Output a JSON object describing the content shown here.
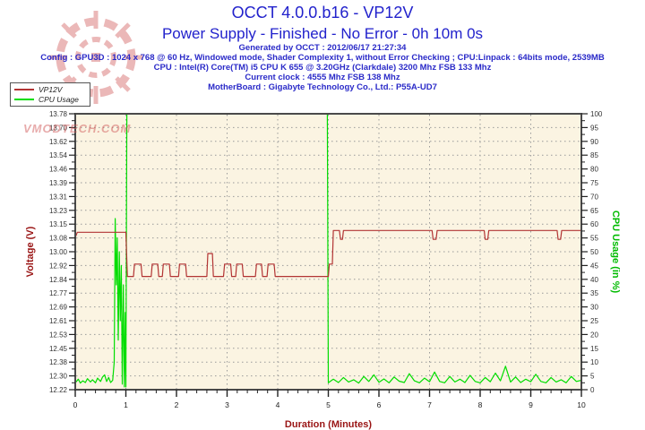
{
  "title": {
    "line1": "OCCT 4.0.0.b16 - VP12V",
    "line2": "Power Supply - Finished - No Error - 0h 10m 0s"
  },
  "info_lines": [
    "Generated by OCCT : 2012/06/17 21:27:34",
    "Config : GPU3D : 1024 x 768 @ 60 Hz, Windowed mode, Shader Complexity 1, without Error Checking ; CPU:Linpack : 64bits mode, 2539MB",
    "CPU : Intel(R) Core(TM) i5 CPU K 655 @ 3.20GHz (Clarkdale) 3200 Mhz FSB 133 Mhz",
    "Current clock : 4555 Mhz FSB 138 Mhz",
    "MotherBoard : Gigabyte Technology Co., Ltd.: P55A-UD7"
  ],
  "legend": {
    "items": [
      {
        "label": "VP12V",
        "color": "#b23434"
      },
      {
        "label": "CPU Usage",
        "color": "#00dd00"
      }
    ]
  },
  "watermark": {
    "text": "VMODTECH.COM"
  },
  "colors": {
    "title_blue": "#2222cc",
    "info_blue": "#2a2ac8",
    "axis_red": "#991414",
    "axis_green": "#00bb00",
    "series_red": "#b23434",
    "series_green": "#00dd00",
    "plot_bg": "#fbf4e2",
    "grid": "#9a9a9a",
    "frame": "#4a4a4a",
    "watermark_red": "#d05858"
  },
  "chart_data": {
    "type": "line",
    "title": "OCCT 4.0.0.b16 - VP12V",
    "plot_bg": "#fbf4e2",
    "grid_color": "#9a9a9a",
    "frame_color": "#4a4a4a",
    "grid": "dotted",
    "legend_position": "top-left",
    "x_axis": {
      "label": "Duration (Minutes)",
      "range": [
        0,
        10
      ],
      "tick_labels": [
        "0",
        "1",
        "2",
        "3",
        "4",
        "5",
        "6",
        "7",
        "8",
        "9",
        "10"
      ],
      "minor_tick_step": 0.2
    },
    "y_left": {
      "label": "Voltage (V)",
      "range": [
        12.22,
        13.78
      ],
      "tick_labels": [
        "13.78",
        "13.70",
        "13.62",
        "13.54",
        "13.46",
        "13.39",
        "13.31",
        "13.23",
        "13.15",
        "13.08",
        "13.00",
        "12.92",
        "12.84",
        "12.77",
        "12.69",
        "12.61",
        "12.53",
        "12.45",
        "12.38",
        "12.30",
        "12.22"
      ]
    },
    "y_right": {
      "label": "CPU Usage (in %)",
      "range": [
        0,
        100
      ],
      "tick_labels": [
        "100",
        "95",
        "90",
        "85",
        "80",
        "75",
        "70",
        "65",
        "60",
        "55",
        "50",
        "45",
        "40",
        "35",
        "30",
        "25",
        "20",
        "15",
        "10",
        "5",
        "0"
      ]
    },
    "series": [
      {
        "name": "VP12V",
        "axis": "left",
        "color": "#b23434",
        "points": [
          [
            0,
            13.08
          ],
          [
            0.04,
            13.11
          ],
          [
            1.0,
            13.11
          ],
          [
            1.03,
            12.86
          ],
          [
            1.15,
            12.86
          ],
          [
            1.17,
            12.93
          ],
          [
            1.3,
            12.93
          ],
          [
            1.32,
            12.86
          ],
          [
            1.5,
            12.86
          ],
          [
            1.52,
            12.93
          ],
          [
            1.63,
            12.93
          ],
          [
            1.65,
            12.86
          ],
          [
            1.72,
            12.86
          ],
          [
            1.74,
            12.93
          ],
          [
            1.86,
            12.93
          ],
          [
            1.88,
            12.86
          ],
          [
            2.04,
            12.86
          ],
          [
            2.06,
            12.93
          ],
          [
            2.18,
            12.93
          ],
          [
            2.2,
            12.86
          ],
          [
            2.6,
            12.86
          ],
          [
            2.62,
            12.99
          ],
          [
            2.71,
            12.99
          ],
          [
            2.73,
            12.86
          ],
          [
            2.93,
            12.86
          ],
          [
            2.95,
            12.93
          ],
          [
            3.07,
            12.93
          ],
          [
            3.09,
            12.86
          ],
          [
            3.17,
            12.86
          ],
          [
            3.19,
            12.93
          ],
          [
            3.3,
            12.93
          ],
          [
            3.32,
            12.86
          ],
          [
            3.56,
            12.86
          ],
          [
            3.58,
            12.93
          ],
          [
            3.68,
            12.93
          ],
          [
            3.7,
            12.86
          ],
          [
            3.79,
            12.86
          ],
          [
            3.81,
            12.93
          ],
          [
            3.93,
            12.93
          ],
          [
            3.95,
            12.86
          ],
          [
            5.0,
            12.86
          ],
          [
            5.02,
            12.93
          ],
          [
            5.08,
            12.93
          ],
          [
            5.1,
            13.12
          ],
          [
            5.22,
            13.12
          ],
          [
            5.24,
            13.07
          ],
          [
            5.28,
            13.07
          ],
          [
            5.3,
            13.12
          ],
          [
            7.05,
            13.12
          ],
          [
            7.07,
            13.07
          ],
          [
            7.13,
            13.07
          ],
          [
            7.15,
            13.12
          ],
          [
            8.08,
            13.12
          ],
          [
            8.1,
            13.07
          ],
          [
            8.15,
            13.07
          ],
          [
            8.17,
            13.12
          ],
          [
            9.52,
            13.12
          ],
          [
            9.54,
            13.07
          ],
          [
            9.59,
            13.07
          ],
          [
            9.61,
            13.12
          ],
          [
            10,
            13.12
          ]
        ]
      },
      {
        "name": "CPU Usage",
        "axis": "right",
        "color": "#00dd00",
        "points": [
          [
            0,
            2.5
          ],
          [
            0.06,
            3.8
          ],
          [
            0.1,
            2.4
          ],
          [
            0.15,
            3.2
          ],
          [
            0.2,
            2.6
          ],
          [
            0.24,
            4.0
          ],
          [
            0.3,
            2.8
          ],
          [
            0.34,
            3.6
          ],
          [
            0.4,
            2.5
          ],
          [
            0.44,
            4.2
          ],
          [
            0.5,
            3.0
          ],
          [
            0.54,
            4.6
          ],
          [
            0.58,
            5.4
          ],
          [
            0.62,
            3.0
          ],
          [
            0.66,
            4.4
          ],
          [
            0.7,
            2.6
          ],
          [
            0.74,
            3.4
          ],
          [
            0.77,
            10
          ],
          [
            0.79,
            62
          ],
          [
            0.81,
            38
          ],
          [
            0.83,
            55
          ],
          [
            0.85,
            18
          ],
          [
            0.87,
            50
          ],
          [
            0.89,
            25
          ],
          [
            0.91,
            45
          ],
          [
            0.93,
            2
          ],
          [
            0.95,
            38
          ],
          [
            0.97,
            1
          ],
          [
            0.99,
            28
          ],
          [
            1.0,
            1
          ],
          [
            1.02,
            100
          ],
          [
            4.98,
            100
          ],
          [
            5.0,
            2.5
          ],
          [
            5.1,
            3.8
          ],
          [
            5.2,
            2.6
          ],
          [
            5.3,
            4.4
          ],
          [
            5.4,
            2.8
          ],
          [
            5.5,
            3.6
          ],
          [
            5.6,
            2.4
          ],
          [
            5.7,
            4.8
          ],
          [
            5.8,
            3.0
          ],
          [
            5.9,
            5.4
          ],
          [
            6.0,
            2.7
          ],
          [
            6.1,
            3.9
          ],
          [
            6.2,
            2.5
          ],
          [
            6.3,
            4.6
          ],
          [
            6.4,
            3.1
          ],
          [
            6.5,
            2.6
          ],
          [
            6.6,
            5.8
          ],
          [
            6.7,
            3.2
          ],
          [
            6.8,
            2.5
          ],
          [
            6.9,
            4.2
          ],
          [
            7.0,
            2.9
          ],
          [
            7.1,
            6.4
          ],
          [
            7.2,
            3.0
          ],
          [
            7.3,
            2.5
          ],
          [
            7.4,
            4.8
          ],
          [
            7.5,
            2.8
          ],
          [
            7.6,
            3.8
          ],
          [
            7.7,
            2.6
          ],
          [
            7.8,
            5.2
          ],
          [
            7.9,
            3.0
          ],
          [
            8.0,
            2.5
          ],
          [
            8.1,
            4.4
          ],
          [
            8.2,
            2.9
          ],
          [
            8.3,
            6.0
          ],
          [
            8.4,
            3.2
          ],
          [
            8.5,
            8.5
          ],
          [
            8.6,
            2.8
          ],
          [
            8.7,
            4.6
          ],
          [
            8.8,
            2.6
          ],
          [
            8.9,
            3.8
          ],
          [
            9.0,
            2.9
          ],
          [
            9.1,
            5.6
          ],
          [
            9.2,
            3.0
          ],
          [
            9.3,
            2.5
          ],
          [
            9.4,
            4.4
          ],
          [
            9.5,
            2.8
          ],
          [
            9.6,
            3.6
          ],
          [
            9.7,
            2.5
          ],
          [
            9.8,
            4.8
          ],
          [
            9.9,
            3.0
          ],
          [
            10,
            3.4
          ]
        ]
      }
    ]
  }
}
